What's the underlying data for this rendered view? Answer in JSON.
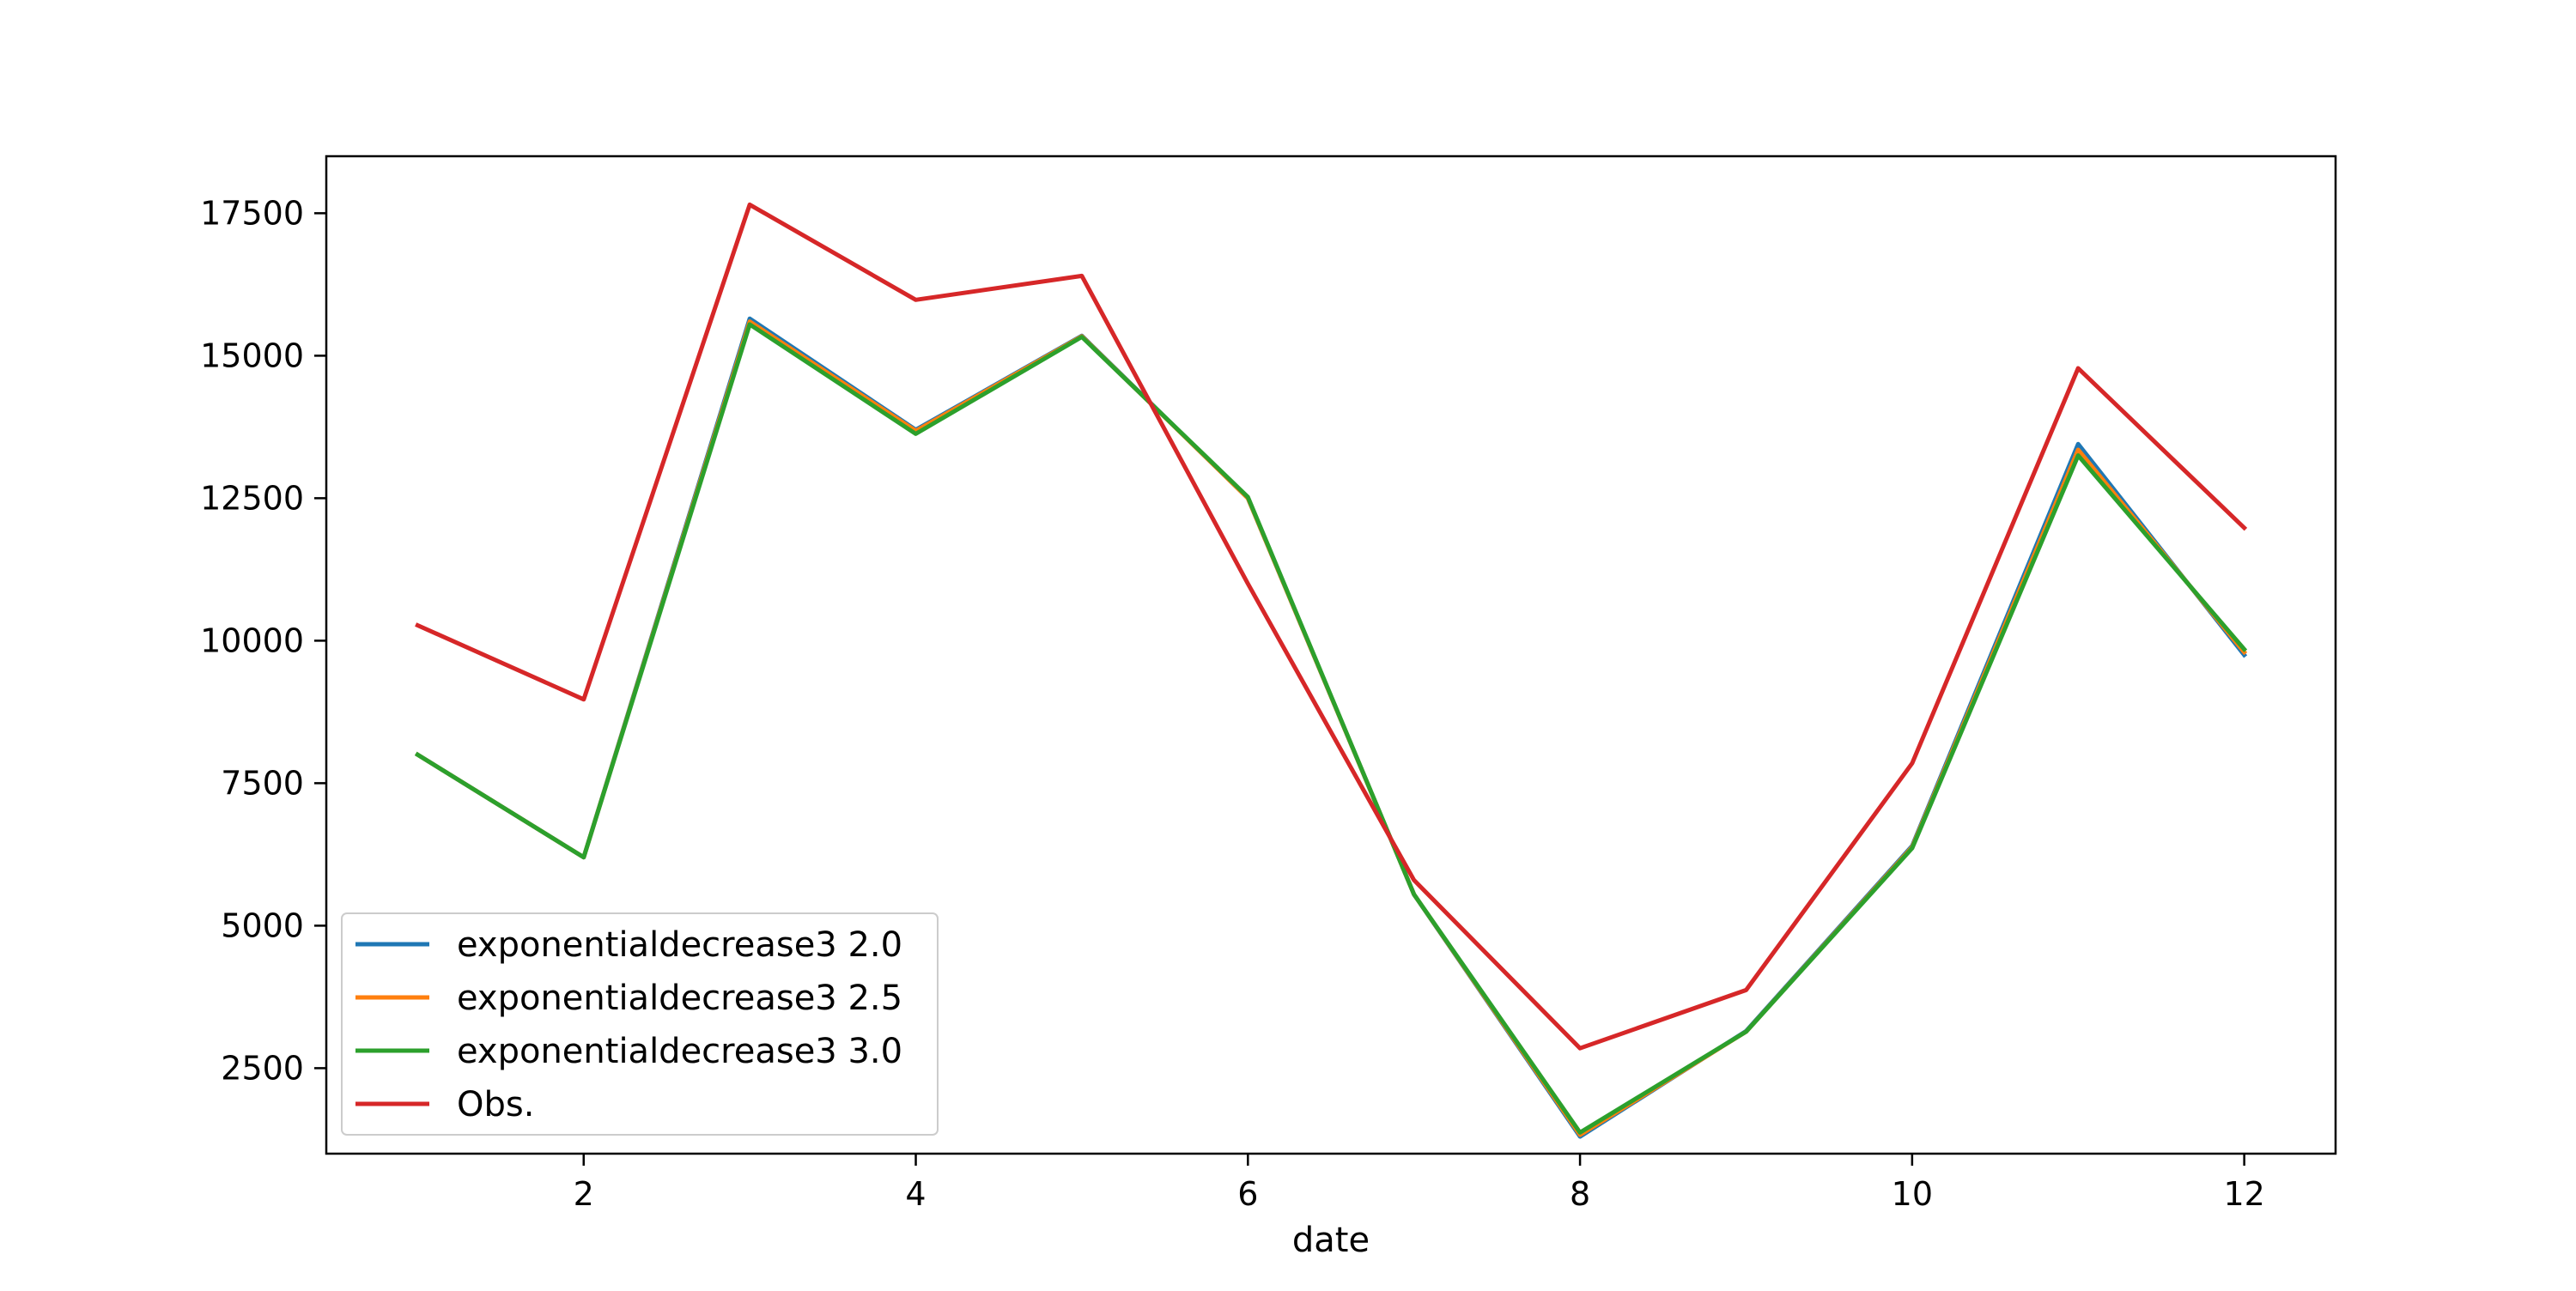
{
  "chart_data": {
    "type": "line",
    "title": "",
    "xlabel": "date",
    "ylabel": "",
    "x": [
      1,
      2,
      3,
      4,
      5,
      6,
      7,
      8,
      9,
      10,
      11,
      12
    ],
    "xlim": [
      0.45,
      12.55
    ],
    "ylim": [
      1000,
      18500
    ],
    "xticks": [
      2,
      4,
      6,
      8,
      10,
      12
    ],
    "yticks": [
      2500,
      5000,
      7500,
      10000,
      12500,
      15000,
      17500
    ],
    "grid": false,
    "legend_position": "lower-left",
    "series": [
      {
        "name": "exponentialdecrease3 2.0",
        "color": "#1f77b4",
        "values": [
          8000,
          6200,
          15650,
          13700,
          15350,
          12500,
          5550,
          1300,
          3150,
          6400,
          13450,
          9750
        ]
      },
      {
        "name": "exponentialdecrease3 2.5",
        "color": "#ff7f0e",
        "values": [
          8000,
          6200,
          15600,
          13680,
          15340,
          12500,
          5550,
          1330,
          3140,
          6380,
          13350,
          9800
        ]
      },
      {
        "name": "exponentialdecrease3 3.0",
        "color": "#2ca02c",
        "values": [
          8000,
          6200,
          15550,
          13630,
          15330,
          12520,
          5550,
          1370,
          3140,
          6360,
          13250,
          9850
        ]
      },
      {
        "name": "Obs.",
        "color": "#d62728",
        "values": [
          10270,
          8970,
          17650,
          15980,
          16400,
          11000,
          5800,
          2850,
          3870,
          7850,
          14780,
          11980
        ]
      }
    ]
  }
}
